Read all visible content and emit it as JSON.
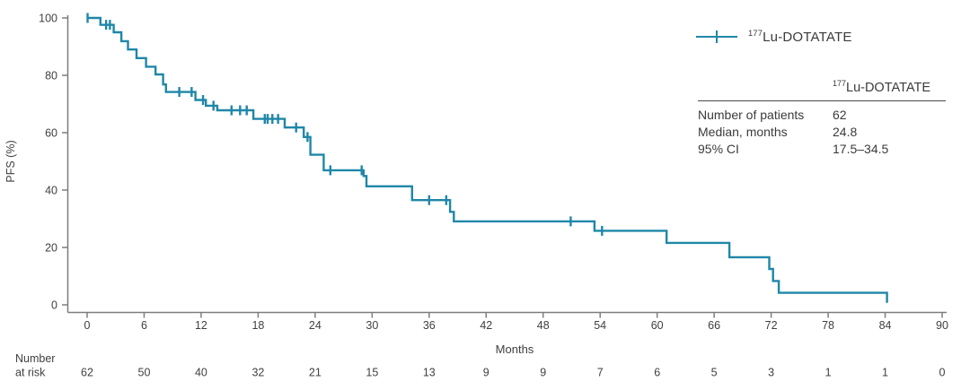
{
  "colors": {
    "accent": "#1f87a8",
    "axis": "#7d7d7d",
    "text": "#3f3f3f"
  },
  "legend": {
    "isotope": "177",
    "drug": "Lu-DOTATATE"
  },
  "stats": {
    "header_isotope": "177",
    "header_drug": "Lu-DOTATATE",
    "rows": [
      {
        "label": "Number of patients",
        "value": "62"
      },
      {
        "label": "Median, months",
        "value": "24.8"
      },
      {
        "label": "95% CI",
        "value": "17.5–34.5"
      }
    ]
  },
  "chart_data": {
    "type": "line",
    "subtype": "kaplan-meier-step",
    "title": "",
    "xlabel": "Months",
    "ylabel": "PFS (%)",
    "xlim": [
      0,
      90
    ],
    "ylim": [
      0,
      100
    ],
    "xticks": [
      0,
      6,
      12,
      18,
      24,
      30,
      36,
      42,
      48,
      54,
      60,
      66,
      72,
      78,
      84,
      90
    ],
    "yticks": [
      0,
      20,
      40,
      60,
      80,
      100
    ],
    "grid": false,
    "legend_position": "top-right",
    "series": [
      {
        "name": "177Lu-DOTATATE",
        "color": "#1f87a8",
        "median_months": 24.8,
        "ci95": "17.5–34.5",
        "n": 62,
        "steps": [
          [
            0,
            100
          ],
          [
            1.4,
            97.6
          ],
          [
            2.8,
            95.0
          ],
          [
            3.6,
            91.9
          ],
          [
            4.3,
            89.0
          ],
          [
            5.2,
            86.0
          ],
          [
            6.2,
            83.0
          ],
          [
            7.2,
            80.3
          ],
          [
            8.0,
            76.8
          ],
          [
            8.3,
            74.2
          ],
          [
            11.4,
            71.4
          ],
          [
            12.5,
            69.4
          ],
          [
            13.7,
            67.8
          ],
          [
            17.5,
            64.8
          ],
          [
            20.8,
            61.8
          ],
          [
            22.8,
            58.5
          ],
          [
            23.5,
            52.3
          ],
          [
            24.9,
            46.9
          ],
          [
            29.1,
            44.9
          ],
          [
            29.4,
            41.3
          ],
          [
            34.2,
            36.5
          ],
          [
            38.2,
            32.4
          ],
          [
            38.6,
            29.1
          ],
          [
            53.4,
            25.8
          ],
          [
            61.0,
            21.6
          ],
          [
            67.6,
            16.6
          ],
          [
            71.8,
            12.5
          ],
          [
            72.2,
            8.3
          ],
          [
            72.8,
            4.2
          ],
          [
            84.2,
            0.7
          ]
        ],
        "censor_times": [
          0.05,
          2.0,
          2.4,
          9.7,
          11.0,
          12.2,
          13.3,
          15.2,
          16.1,
          16.8,
          18.7,
          19.0,
          19.5,
          20.1,
          22.0,
          23.2,
          25.6,
          28.9,
          36.0,
          37.8,
          50.9,
          54.2
        ]
      }
    ],
    "risk_table": {
      "label_lines": [
        "Number",
        "at risk"
      ],
      "times": [
        0,
        6,
        12,
        18,
        24,
        30,
        36,
        42,
        48,
        54,
        60,
        66,
        72,
        78,
        84,
        90
      ],
      "values": [
        62,
        50,
        40,
        32,
        21,
        15,
        13,
        9,
        9,
        7,
        6,
        5,
        3,
        1,
        1,
        0
      ]
    }
  }
}
